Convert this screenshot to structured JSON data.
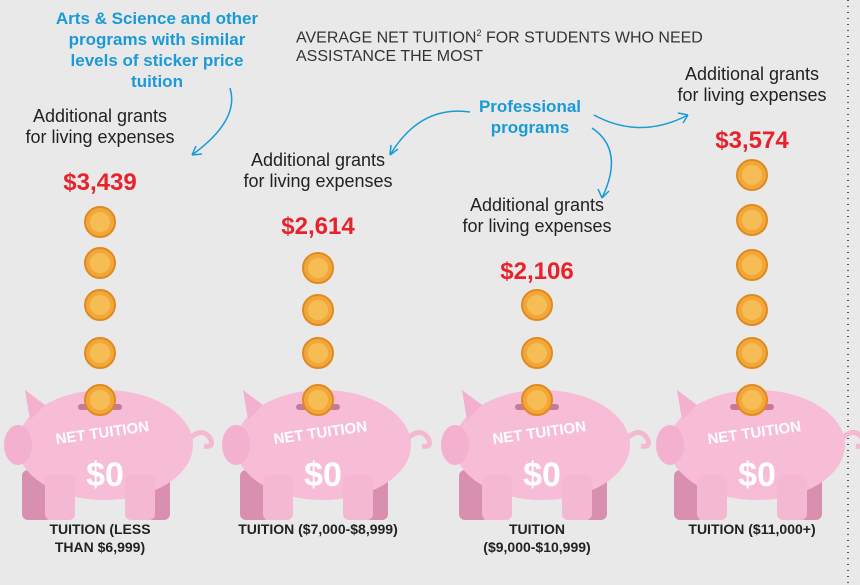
{
  "title": {
    "before": "AVERAGE NET TUITION",
    "sup": "2",
    "after": "FOR STUDENTS WHO NEED ASSISTANCE THE MOST"
  },
  "notes": {
    "arts": "Arts & Science and other programs with similar levels of sticker price tuition",
    "professional": "Professional programs"
  },
  "columns": [
    {
      "heading": "Additional grants for living expenses",
      "amount": "$3,439",
      "piggy_label": "NET TUITION",
      "piggy_amount": "$0",
      "tuition": "TUITION (LESS THAN $6,999)"
    },
    {
      "heading": "Additional grants for living expenses",
      "amount": "$2,614",
      "piggy_label": "NET TUITION",
      "piggy_amount": "$0",
      "tuition": "TUITION ($7,000-$8,999)"
    },
    {
      "heading": "Additional grants for living expenses",
      "amount": "$2,106",
      "piggy_label": "NET TUITION",
      "piggy_amount": "$0",
      "tuition": "TUITION ($9,000-$10,999)"
    },
    {
      "heading": "Additional grants for living expenses",
      "amount": "$3,574",
      "piggy_label": "NET TUITION",
      "piggy_amount": "$0",
      "tuition": "TUITION ($11,000+)"
    }
  ]
}
